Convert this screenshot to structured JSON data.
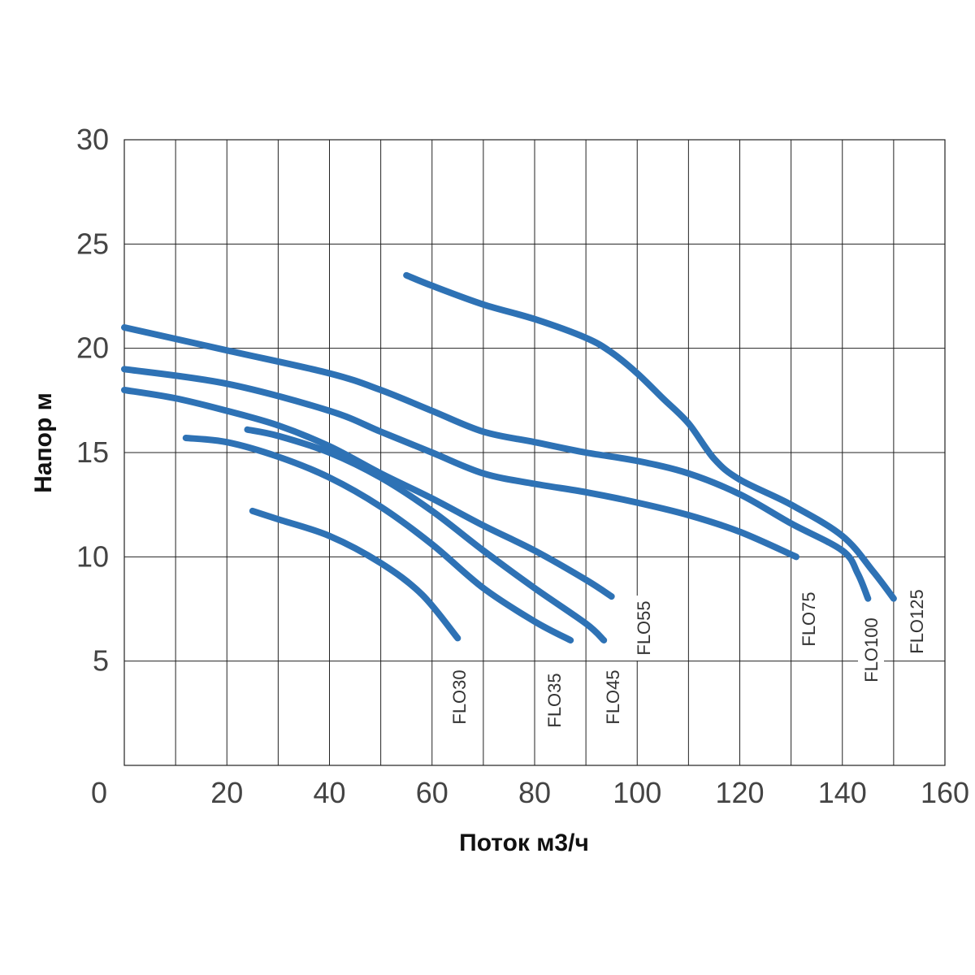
{
  "chart_data": {
    "type": "line",
    "xlabel": "Поток м3/ч",
    "ylabel": "Напор м",
    "xlim": [
      0,
      160
    ],
    "ylim": [
      0,
      30
    ],
    "xticks": [
      "0",
      "20",
      "40",
      "60",
      "80",
      "100",
      "120",
      "140",
      "160"
    ],
    "yticks": [
      "5",
      "10",
      "15",
      "20",
      "25",
      "30"
    ],
    "grid": true,
    "line_color": "#2e72b5",
    "series": [
      {
        "name": "FLO30",
        "x": [
          25,
          30,
          40,
          50,
          58,
          65
        ],
        "y": [
          12.2,
          11.8,
          11,
          9.7,
          8.2,
          6.1
        ]
      },
      {
        "name": "FLO35",
        "x": [
          12,
          20,
          30,
          40,
          50,
          60,
          70,
          80,
          87
        ],
        "y": [
          15.7,
          15.5,
          14.8,
          13.8,
          12.4,
          10.6,
          8.5,
          6.9,
          6.0
        ]
      },
      {
        "name": "FLO45",
        "x": [
          24,
          30,
          40,
          50,
          60,
          70,
          80,
          90,
          93.5
        ],
        "y": [
          16.1,
          15.8,
          15,
          13.8,
          12.2,
          10.3,
          8.5,
          6.8,
          6.0
        ]
      },
      {
        "name": "FLO55",
        "x": [
          0,
          10,
          20,
          30,
          40,
          50,
          60,
          70,
          80,
          90,
          95
        ],
        "y": [
          18,
          17.6,
          17,
          16.3,
          15.3,
          14,
          12.8,
          11.5,
          10.3,
          8.9,
          8.1
        ]
      },
      {
        "name": "FLO75",
        "x": [
          0,
          20,
          40,
          50,
          60,
          70,
          80,
          90,
          100,
          110,
          120,
          131
        ],
        "y": [
          19,
          18.3,
          17,
          16,
          15,
          14,
          13.5,
          13.1,
          12.6,
          12.0,
          11.2,
          10
        ]
      },
      {
        "name": "FLO100",
        "x": [
          0,
          20,
          40,
          50,
          60,
          70,
          80,
          90,
          100,
          110,
          120,
          130,
          140,
          143,
          145
        ],
        "y": [
          21,
          19.9,
          18.8,
          18,
          17,
          16,
          15.5,
          15,
          14.6,
          14,
          13,
          11.6,
          10.3,
          9.2,
          8
        ]
      },
      {
        "name": "FLO125",
        "x": [
          55,
          60,
          70,
          80,
          90,
          95,
          100,
          105,
          110,
          115,
          120,
          130,
          140,
          146,
          150
        ],
        "y": [
          23.5,
          23,
          22.1,
          21.4,
          20.5,
          19.8,
          18.8,
          17.6,
          16.4,
          14.7,
          13.7,
          12.5,
          11,
          9.3,
          8
        ]
      }
    ]
  }
}
